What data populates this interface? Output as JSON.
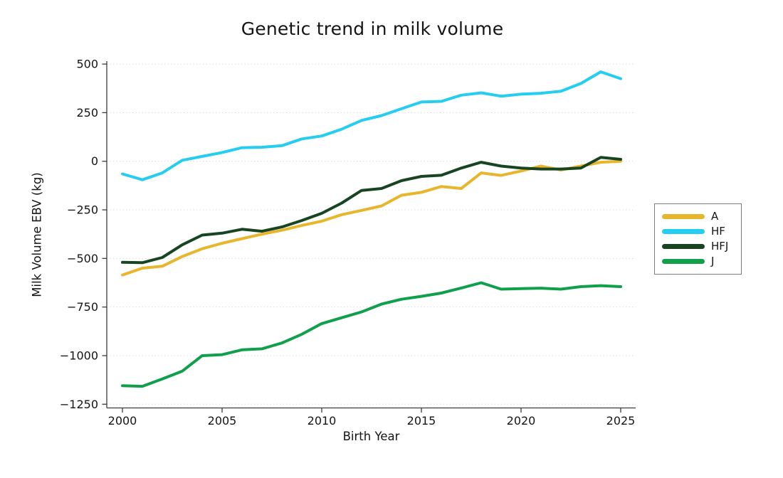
{
  "chart_data": {
    "type": "line",
    "title": "Genetic trend in milk volume",
    "xlabel": "Birth Year",
    "ylabel": "Milk Volume EBV (kg)",
    "x": [
      2000,
      2001,
      2002,
      2003,
      2004,
      2005,
      2006,
      2007,
      2008,
      2009,
      2010,
      2011,
      2012,
      2013,
      2014,
      2015,
      2016,
      2017,
      2018,
      2019,
      2020,
      2021,
      2022,
      2023,
      2024,
      2025
    ],
    "series": [
      {
        "name": "A",
        "color": "#E8B62C",
        "values": [
          -585,
          -550,
          -540,
          -490,
          -450,
          -422,
          -398,
          -375,
          -355,
          -330,
          -308,
          -275,
          -253,
          -230,
          -175,
          -160,
          -130,
          -140,
          -60,
          -73,
          -50,
          -25,
          -45,
          -25,
          -5,
          0
        ]
      },
      {
        "name": "HF",
        "color": "#25CEF0",
        "values": [
          -65,
          -95,
          -60,
          5,
          25,
          45,
          70,
          72,
          80,
          115,
          130,
          165,
          210,
          235,
          270,
          305,
          308,
          340,
          352,
          335,
          345,
          350,
          360,
          400,
          460,
          425
        ]
      },
      {
        "name": "HFJ",
        "color": "#174522",
        "values": [
          -520,
          -522,
          -495,
          -430,
          -380,
          -370,
          -350,
          -360,
          -338,
          -305,
          -268,
          -215,
          -150,
          -140,
          -100,
          -78,
          -72,
          -35,
          -5,
          -25,
          -35,
          -40,
          -40,
          -35,
          20,
          10
        ]
      },
      {
        "name": "J",
        "color": "#10A04C",
        "values": [
          -1155,
          -1158,
          -1120,
          -1080,
          -1000,
          -995,
          -970,
          -965,
          -935,
          -890,
          -835,
          -805,
          -775,
          -735,
          -710,
          -695,
          -678,
          -652,
          -625,
          -658,
          -655,
          -653,
          -658,
          -645,
          -640,
          -645
        ]
      }
    ],
    "xticks": [
      2000,
      2005,
      2010,
      2015,
      2020,
      2025
    ],
    "yticks": [
      500,
      250,
      0,
      -250,
      -500,
      -750,
      -1000,
      -1250
    ],
    "xlim": [
      2000,
      2025
    ],
    "ylim": [
      -1250,
      500
    ],
    "grid": "horizontal-dotted",
    "legend_position": "right-outside"
  }
}
